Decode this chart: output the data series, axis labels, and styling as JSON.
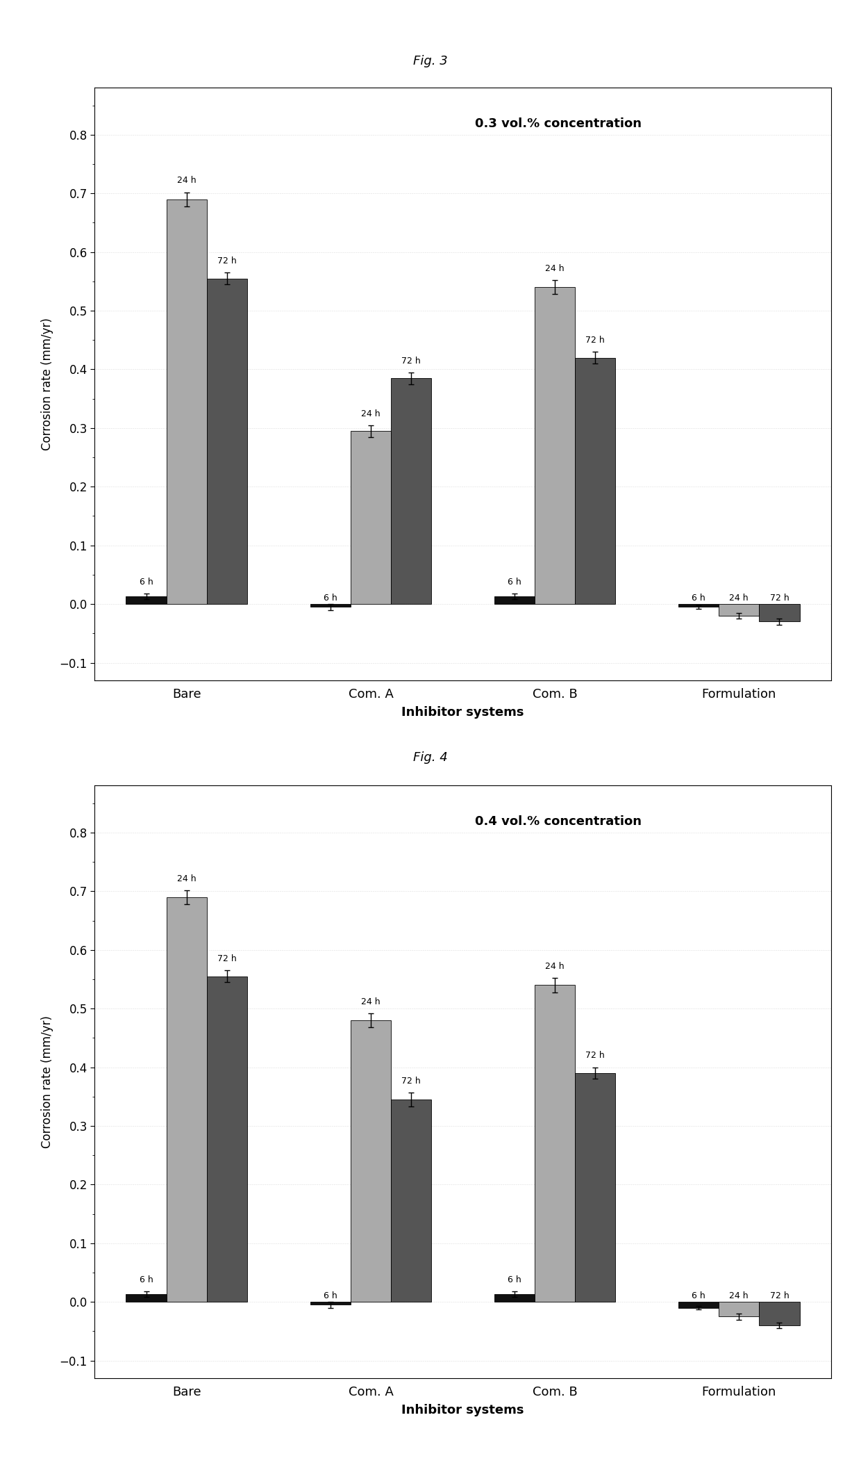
{
  "fig3": {
    "fig_label": "Fig. 3",
    "annotation": "0.3 vol.% concentration",
    "categories": [
      "Bare",
      "Com. A",
      "Com. B",
      "Formulation"
    ],
    "series_6h": [
      0.013,
      -0.005,
      0.013,
      -0.005
    ],
    "series_24h": [
      0.69,
      0.295,
      0.54,
      -0.02
    ],
    "series_72h": [
      0.555,
      0.385,
      0.42,
      -0.03
    ],
    "err_6h": [
      0.005,
      0.005,
      0.005,
      0.003
    ],
    "err_24h": [
      0.012,
      0.01,
      0.012,
      0.005
    ],
    "err_72h": [
      0.01,
      0.01,
      0.01,
      0.005
    ]
  },
  "fig4": {
    "fig_label": "Fig. 4",
    "annotation": "0.4 vol.% concentration",
    "categories": [
      "Bare",
      "Com. A",
      "Com. B",
      "Formulation"
    ],
    "series_6h": [
      0.013,
      -0.005,
      0.013,
      -0.01
    ],
    "series_24h": [
      0.69,
      0.48,
      0.54,
      -0.025
    ],
    "series_72h": [
      0.555,
      0.345,
      0.39,
      -0.04
    ],
    "err_6h": [
      0.005,
      0.005,
      0.005,
      0.003
    ],
    "err_24h": [
      0.012,
      0.012,
      0.012,
      0.005
    ],
    "err_72h": [
      0.01,
      0.012,
      0.01,
      0.005
    ]
  },
  "color_6h": "#111111",
  "color_24h": "#aaaaaa",
  "color_72h": "#555555",
  "ylim": [
    -0.13,
    0.88
  ],
  "yticks": [
    -0.1,
    0.0,
    0.1,
    0.2,
    0.3,
    0.4,
    0.5,
    0.6,
    0.7,
    0.8
  ],
  "xlabel": "Inhibitor systems",
  "ylabel": "Corrosion rate (mm/yr)",
  "bar_width": 0.22,
  "bg_color": "#ffffff",
  "fig_bg": "#ffffff",
  "label_6h": "6 h",
  "label_24h": "24 h",
  "label_72h": "72 h"
}
